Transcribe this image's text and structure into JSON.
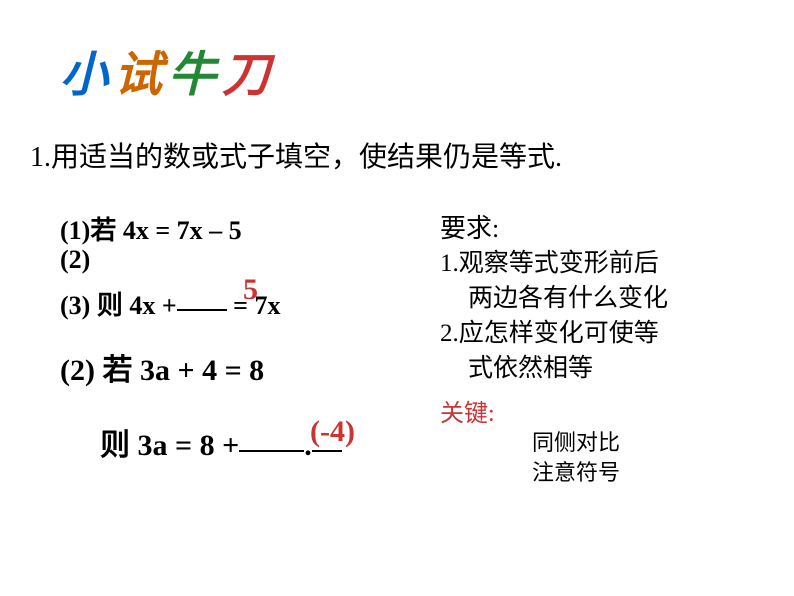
{
  "title": {
    "char1": "小",
    "char2": "试",
    "char3": "牛",
    "char4": "刀"
  },
  "instruction": "1.用适当的数或式子填空，使结果仍是等式.",
  "problem1": {
    "line1": "(1)若  4x  =  7x – 5",
    "line2": "(2)",
    "line3_pre": "(3)      则  4x +",
    "line3_post": " = 7x",
    "answer": "5"
  },
  "problem2": {
    "line1": "(2) 若  3a + 4 = 8",
    "line2_pre": "则  3a  =  8 +",
    "line2_post": ".",
    "answer": "(-4)"
  },
  "requirements": {
    "header": "要求:",
    "req1a": "1.观察等式变形前后",
    "req1b": "两边各有什么变化",
    "req2a": "2.应怎样变化可使等",
    "req2b": "式依然相等"
  },
  "key": {
    "header": "关键:",
    "point1": "同侧对比",
    "point2": "注意符号"
  }
}
